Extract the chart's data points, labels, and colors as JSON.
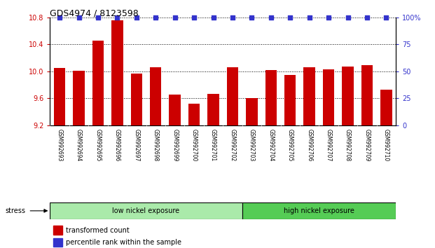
{
  "title": "GDS4974 / 8123598",
  "categories": [
    "GSM992693",
    "GSM992694",
    "GSM992695",
    "GSM992696",
    "GSM992697",
    "GSM992698",
    "GSM992699",
    "GSM992700",
    "GSM992701",
    "GSM992702",
    "GSM992703",
    "GSM992704",
    "GSM992705",
    "GSM992706",
    "GSM992707",
    "GSM992708",
    "GSM992709",
    "GSM992710"
  ],
  "bar_values": [
    10.05,
    10.01,
    10.46,
    10.76,
    9.97,
    10.06,
    9.65,
    9.52,
    9.67,
    10.06,
    9.6,
    10.02,
    9.95,
    10.06,
    10.03,
    10.07,
    10.09,
    9.73
  ],
  "percentile_values": [
    100,
    100,
    100,
    100,
    100,
    100,
    100,
    100,
    100,
    100,
    100,
    100,
    100,
    100,
    100,
    100,
    100,
    100
  ],
  "ylim_left": [
    9.2,
    10.8
  ],
  "ylim_right": [
    0,
    100
  ],
  "bar_color": "#cc0000",
  "dot_color": "#3333cc",
  "background_color": "#ffffff",
  "low_group_count": 10,
  "high_group_count": 8,
  "low_label": "low nickel exposure",
  "high_label": "high nickel exposure",
  "low_bg": "#aaeaaa",
  "high_bg": "#55cc55",
  "stress_label": "stress",
  "legend_bar_label": "transformed count",
  "legend_dot_label": "percentile rank within the sample",
  "yticks_left": [
    9.2,
    9.6,
    10.0,
    10.4,
    10.8
  ],
  "yticks_right": [
    0,
    25,
    50,
    75,
    100
  ],
  "right_ytick_labels": [
    "0",
    "25",
    "50",
    "75",
    "100%"
  ],
  "label_bg": "#cccccc"
}
